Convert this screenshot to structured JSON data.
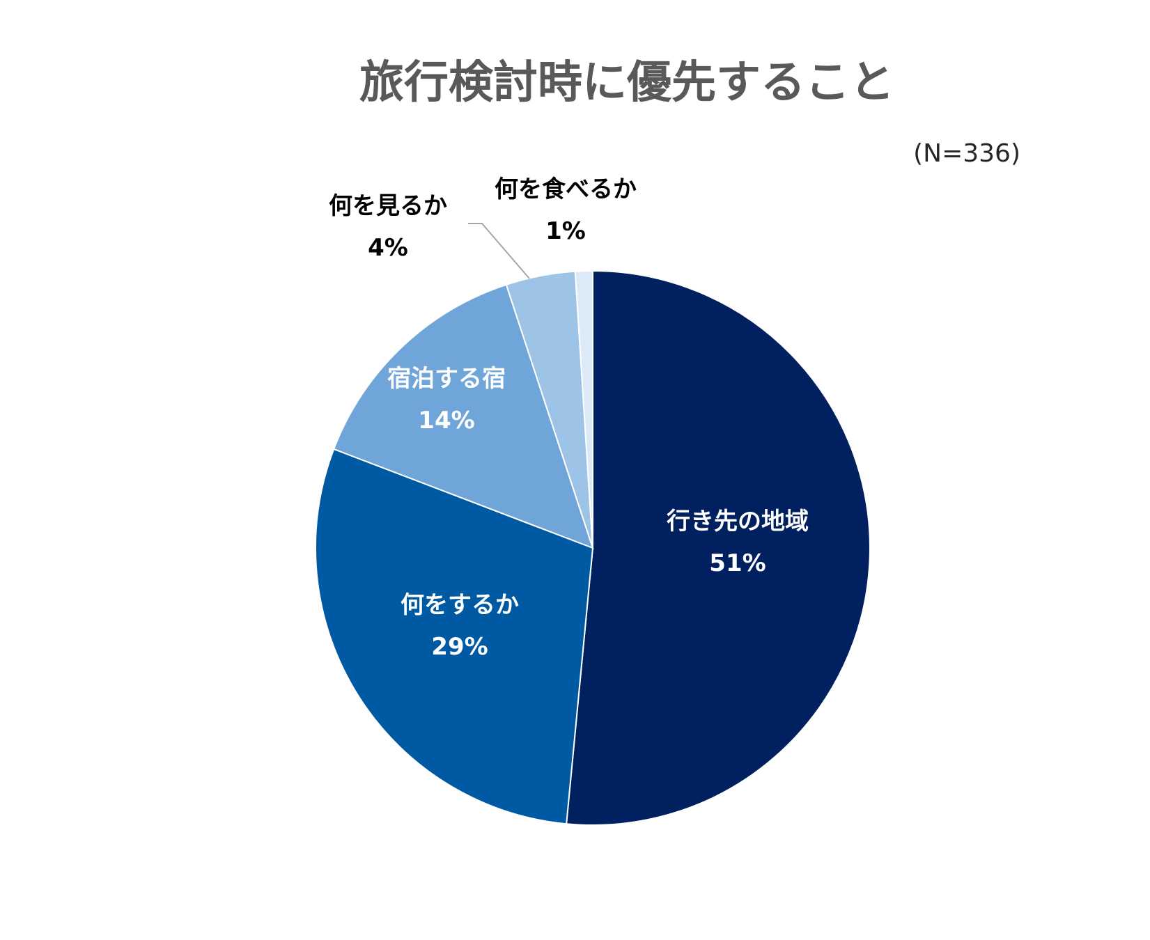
{
  "chart_data": {
    "type": "pie",
    "title": "旅行検討時に優先すること",
    "note": "(N=336)",
    "slices": [
      {
        "name": "行き先の地域",
        "value": 51,
        "label": "51%",
        "color": "#002060"
      },
      {
        "name": "何をするか",
        "value": 29,
        "label": "29%",
        "color": "#005aa3"
      },
      {
        "name": "宿泊する宿",
        "value": 14,
        "label": "14%",
        "color": "#6fa5d8"
      },
      {
        "name": "何を見るか",
        "value": 4,
        "label": "4%",
        "color": "#9dc3e6"
      },
      {
        "name": "何を食べるか",
        "value": 1,
        "label": "1%",
        "color": "#dce9f7"
      }
    ]
  }
}
